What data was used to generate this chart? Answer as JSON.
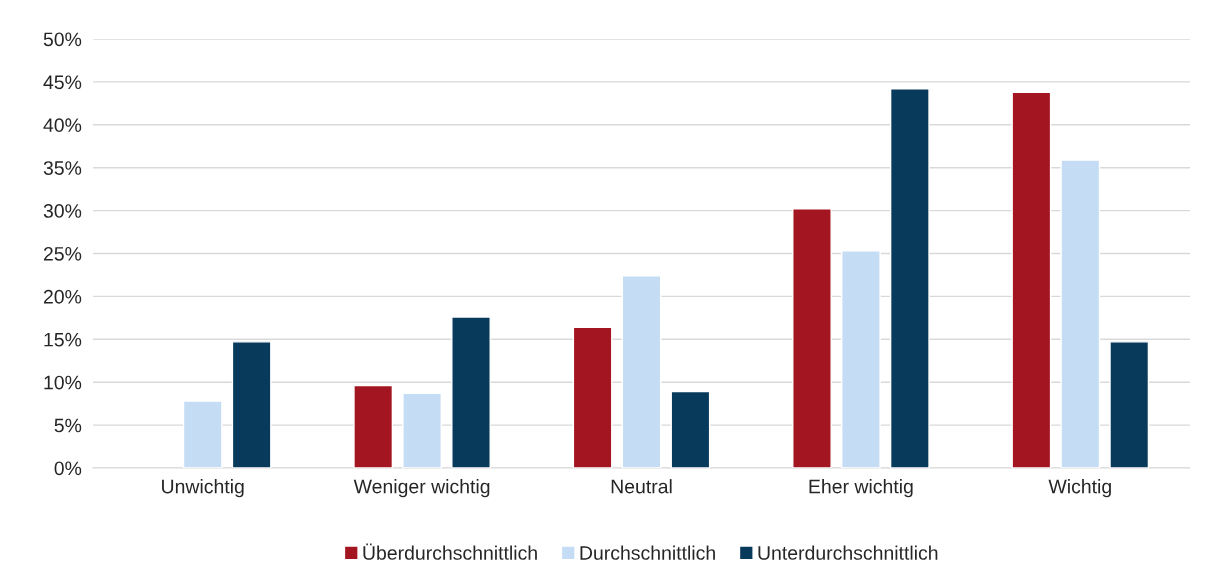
{
  "chart_data": {
    "type": "bar",
    "categories": [
      "Unwichtig",
      "Weniger wichtig",
      "Neutral",
      "Eher wichtig",
      "Wichtig"
    ],
    "series": [
      {
        "name": "Überdurchschnittlich",
        "color": "#a31621",
        "values": [
          null,
          9.6,
          16.4,
          30.2,
          43.8
        ]
      },
      {
        "name": "Durchschnittlich",
        "color": "#c5dcf5",
        "values": [
          7.8,
          8.7,
          22.4,
          25.3,
          35.9
        ]
      },
      {
        "name": "Unterdurchschnittlich",
        "color": "#083a5c",
        "values": [
          14.7,
          17.6,
          8.9,
          44.2,
          14.7
        ]
      }
    ],
    "ylim": [
      0,
      50
    ],
    "yticks": [
      {
        "value": 0,
        "label": "0%"
      },
      {
        "value": 5,
        "label": "5%"
      },
      {
        "value": 10,
        "label": "10%"
      },
      {
        "value": 15,
        "label": "15%"
      },
      {
        "value": 20,
        "label": "20%"
      },
      {
        "value": 25,
        "label": "25%"
      },
      {
        "value": 30,
        "label": "30%"
      },
      {
        "value": 35,
        "label": "35%"
      },
      {
        "value": 40,
        "label": "40%"
      },
      {
        "value": 45,
        "label": "45%"
      },
      {
        "value": 50,
        "label": "50%"
      }
    ],
    "grid": "y",
    "legend": "bottom"
  }
}
